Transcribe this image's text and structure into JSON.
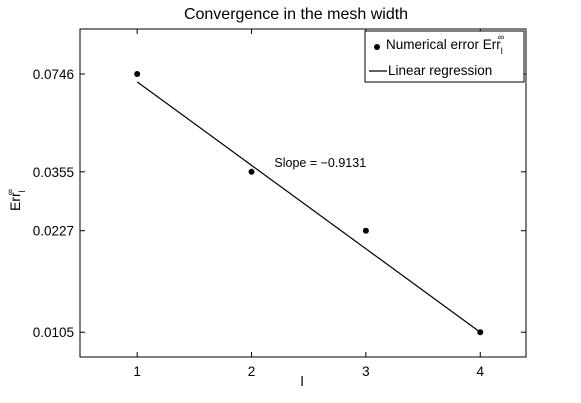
{
  "chart_data": {
    "type": "scatter",
    "title": "Convergence in the mesh width",
    "xlabel": "l",
    "ylabel": {
      "base": "Err",
      "sup": "∞",
      "sub": "l"
    },
    "xlim": [
      0.5,
      4.4
    ],
    "ylim": [
      0.0087,
      0.105
    ],
    "y_scale": "log",
    "x_ticks": [
      1,
      2,
      3,
      4
    ],
    "y_ticks": [
      0.0105,
      0.0227,
      0.0355,
      0.0746
    ],
    "y_tick_labels": [
      "0.0105",
      "0.0227",
      "0.0355",
      "0.0746"
    ],
    "series": [
      {
        "name": "Numerical error Err",
        "name_sup": "∞",
        "name_sub": "l",
        "kind": "scatter",
        "x": [
          1,
          2,
          3,
          4
        ],
        "y": [
          0.0746,
          0.0355,
          0.0227,
          0.0105
        ]
      },
      {
        "name": "Linear regression",
        "kind": "line",
        "x": [
          1,
          4
        ],
        "y": [
          0.0703,
          0.0105
        ]
      }
    ],
    "annotations": [
      {
        "text": "Slope = −0.9131",
        "x": 2.2,
        "y": 0.0368
      }
    ],
    "legend_position": "top-right",
    "grid": false
  }
}
